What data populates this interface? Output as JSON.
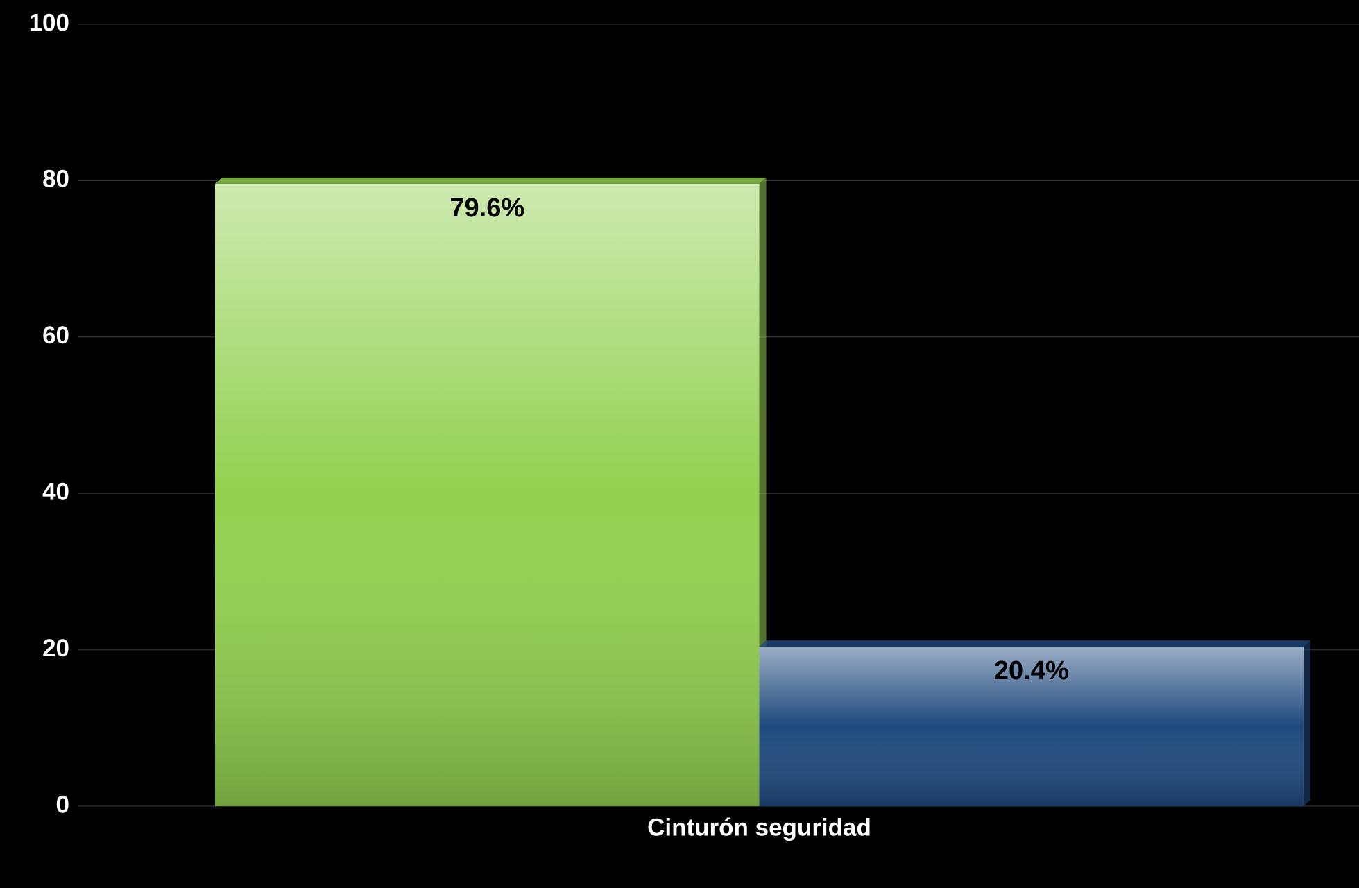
{
  "chart_data": {
    "type": "bar",
    "categories": [
      "Cinturón seguridad"
    ],
    "series": [
      {
        "color": "#92d050",
        "values": [
          79.6
        ],
        "value_labels": [
          "79.6%"
        ]
      },
      {
        "color": "#1f497d",
        "values": [
          20.4
        ],
        "value_labels": [
          "20.4%"
        ]
      }
    ],
    "ylim": [
      0,
      100
    ],
    "yticks": [
      0,
      20,
      40,
      60,
      80,
      100
    ],
    "grid": true
  }
}
